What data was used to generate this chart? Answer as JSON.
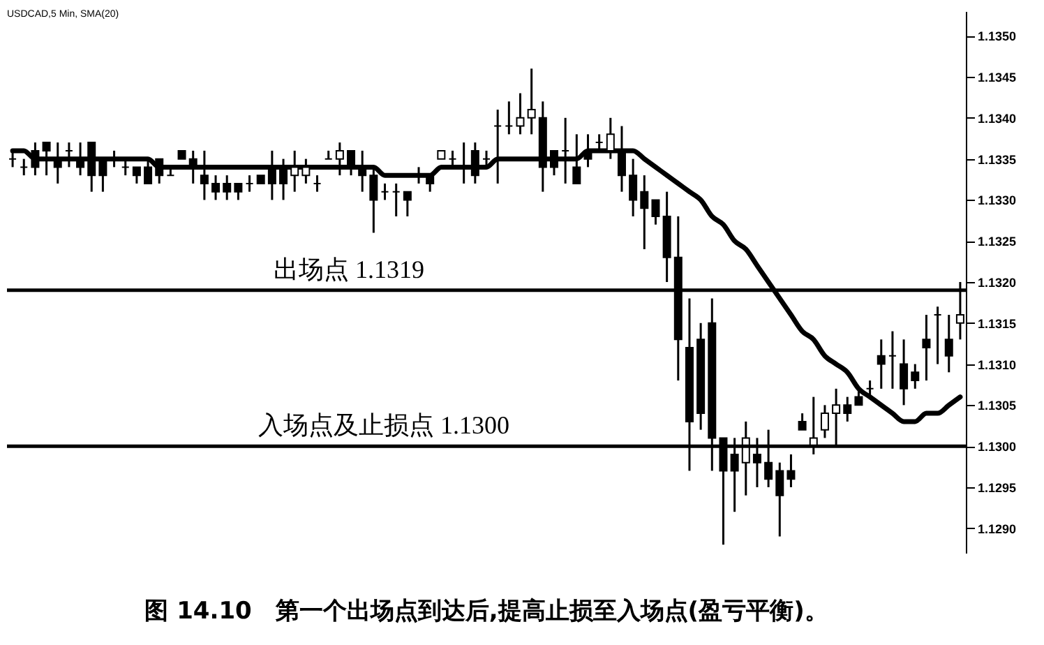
{
  "chart_data": {
    "type": "candlestick",
    "title": "图 14.10　第一个出场点到达后,提高止损至入场点(盈亏平衡)。",
    "annotations": [
      "USDCAD,5 Min, SMA(20)"
    ],
    "categories": [
      null,
      null,
      null,
      null,
      null,
      null,
      null,
      null,
      null,
      null,
      null,
      null,
      null,
      null,
      null,
      null,
      null,
      null,
      null,
      null,
      null,
      null,
      null,
      null,
      null,
      null,
      null,
      null,
      null,
      null,
      null,
      null,
      null,
      null,
      null,
      null,
      null,
      null,
      null,
      null,
      null,
      null,
      null,
      null,
      null,
      null,
      null,
      null,
      null,
      null,
      null,
      null,
      null,
      null,
      null,
      null,
      null,
      null,
      null,
      null,
      null,
      null,
      null,
      null,
      null,
      null,
      null,
      null,
      null,
      null,
      null,
      null,
      null,
      null,
      null,
      null,
      null,
      null,
      null,
      null,
      null,
      null,
      null,
      null,
      null
    ],
    "series": [
      {
        "color": "#000000",
        "ohlc": [
          [
            1.1335,
            1.1336,
            1.1334,
            1.1335
          ],
          [
            1.1334,
            1.1335,
            1.1333,
            1.1334
          ],
          [
            1.1336,
            1.1337,
            1.1333,
            1.1334
          ],
          [
            1.1337,
            1.1337,
            1.1333,
            1.1336
          ],
          [
            1.1335,
            1.1337,
            1.1332,
            1.1334
          ],
          [
            1.1336,
            1.1337,
            1.1334,
            1.1336
          ],
          [
            1.1335,
            1.1337,
            1.1333,
            1.1334
          ],
          [
            1.1337,
            1.1337,
            1.1331,
            1.1333
          ],
          [
            1.1335,
            1.1335,
            1.1331,
            1.1333
          ],
          [
            1.1335,
            1.1336,
            1.1334,
            1.1335
          ],
          [
            1.1334,
            1.1335,
            1.1333,
            1.1334
          ],
          [
            1.1334,
            1.1334,
            1.1332,
            1.1333
          ],
          [
            1.1334,
            1.1335,
            1.1332,
            1.1332
          ],
          [
            1.1335,
            1.1335,
            1.1332,
            1.1333
          ],
          [
            1.1333,
            1.1334,
            1.1333,
            1.1333
          ],
          [
            1.1336,
            1.1336,
            1.1335,
            1.1335
          ],
          [
            1.1335,
            1.1336,
            1.1332,
            1.1334
          ],
          [
            1.1333,
            1.1336,
            1.133,
            1.1332
          ],
          [
            1.1332,
            1.1333,
            1.133,
            1.1331
          ],
          [
            1.1332,
            1.1333,
            1.133,
            1.1331
          ],
          [
            1.1332,
            1.1332,
            1.133,
            1.1331
          ],
          [
            1.1332,
            1.1333,
            1.1331,
            1.1332
          ],
          [
            1.1333,
            1.1333,
            1.1332,
            1.1332
          ],
          [
            1.1334,
            1.1336,
            1.133,
            1.1332
          ],
          [
            1.1334,
            1.1335,
            1.133,
            1.1332
          ],
          [
            1.1333,
            1.1336,
            1.1331,
            1.1334
          ],
          [
            1.1333,
            1.1335,
            1.1332,
            1.1334
          ],
          [
            1.1332,
            1.1333,
            1.1331,
            1.1332
          ],
          [
            1.1335,
            1.1336,
            1.1335,
            1.1335
          ],
          [
            1.1335,
            1.1337,
            1.1333,
            1.1336
          ],
          [
            1.1336,
            1.1336,
            1.1333,
            1.1334
          ],
          [
            1.1334,
            1.1336,
            1.1331,
            1.1333
          ],
          [
            1.1333,
            1.1334,
            1.1326,
            1.133
          ],
          [
            1.1331,
            1.1332,
            1.133,
            1.1331
          ],
          [
            1.1331,
            1.1332,
            1.1328,
            1.1331
          ],
          [
            1.1331,
            1.1331,
            1.1328,
            1.133
          ],
          [
            1.1333,
            1.1334,
            1.1332,
            1.1333
          ],
          [
            1.1333,
            1.1333,
            1.1331,
            1.1332
          ],
          [
            1.1335,
            1.1336,
            1.1335,
            1.1336
          ],
          [
            1.1335,
            1.1336,
            1.1334,
            1.1335
          ],
          [
            1.1334,
            1.1337,
            1.1332,
            1.1334
          ],
          [
            1.1336,
            1.1337,
            1.1332,
            1.1333
          ],
          [
            1.1335,
            1.1336,
            1.1334,
            1.1335
          ],
          [
            1.1339,
            1.1341,
            1.1332,
            1.1339
          ],
          [
            1.1339,
            1.1342,
            1.1338,
            1.1339
          ],
          [
            1.1339,
            1.1343,
            1.1338,
            1.134
          ],
          [
            1.134,
            1.1346,
            1.1338,
            1.1341
          ],
          [
            1.134,
            1.1342,
            1.1331,
            1.1334
          ],
          [
            1.1336,
            1.1336,
            1.1333,
            1.1334
          ],
          [
            1.1336,
            1.134,
            1.1332,
            1.1336
          ],
          [
            1.1334,
            1.1338,
            1.1332,
            1.1332
          ],
          [
            1.1336,
            1.1338,
            1.1334,
            1.1335
          ],
          [
            1.1337,
            1.1338,
            1.1336,
            1.1337
          ],
          [
            1.1336,
            1.134,
            1.1335,
            1.1338
          ],
          [
            1.1336,
            1.1339,
            1.1331,
            1.1333
          ],
          [
            1.1333,
            1.1335,
            1.1328,
            1.133
          ],
          [
            1.1331,
            1.1333,
            1.1324,
            1.1329
          ],
          [
            1.133,
            1.133,
            1.1327,
            1.1328
          ],
          [
            1.1328,
            1.1331,
            1.132,
            1.1323
          ],
          [
            1.1323,
            1.1328,
            1.1308,
            1.1313
          ],
          [
            1.1312,
            1.1318,
            1.1297,
            1.1303
          ],
          [
            1.1313,
            1.1315,
            1.1302,
            1.1304
          ],
          [
            1.1315,
            1.1318,
            1.1297,
            1.1301
          ],
          [
            1.1301,
            1.1301,
            1.1288,
            1.1297
          ],
          [
            1.1299,
            1.1301,
            1.1292,
            1.1297
          ],
          [
            1.1298,
            1.1303,
            1.1294,
            1.1301
          ],
          [
            1.1299,
            1.1301,
            1.1295,
            1.1298
          ],
          [
            1.1298,
            1.1302,
            1.1295,
            1.1296
          ],
          [
            1.1297,
            1.1298,
            1.1289,
            1.1294
          ],
          [
            1.1297,
            1.1299,
            1.1295,
            1.1296
          ],
          [
            1.1303,
            1.1304,
            1.1302,
            1.1302
          ],
          [
            1.13,
            1.1306,
            1.1299,
            1.1301
          ],
          [
            1.1302,
            1.1305,
            1.1301,
            1.1304
          ],
          [
            1.1304,
            1.1307,
            1.13,
            1.1305
          ],
          [
            1.1305,
            1.1306,
            1.1303,
            1.1304
          ],
          [
            1.1306,
            1.1307,
            1.1305,
            1.1305
          ],
          [
            1.1307,
            1.1308,
            1.1306,
            1.1307
          ],
          [
            1.1311,
            1.1313,
            1.1307,
            1.131
          ],
          [
            1.1311,
            1.1314,
            1.1307,
            1.1311
          ],
          [
            1.131,
            1.1313,
            1.1305,
            1.1307
          ],
          [
            1.1309,
            1.131,
            1.1307,
            1.1308
          ],
          [
            1.1313,
            1.1316,
            1.1308,
            1.1312
          ],
          [
            1.1316,
            1.1317,
            1.131,
            1.1316
          ],
          [
            1.1313,
            1.1316,
            1.1309,
            1.1311
          ],
          [
            1.1315,
            1.132,
            1.1313,
            1.1316
          ]
        ]
      },
      {
        "type": "line",
        "color": "#000000",
        "values": [
          1.1336,
          1.1336,
          1.1335,
          1.1335,
          1.1335,
          1.1335,
          1.1335,
          1.1335,
          1.1335,
          1.1335,
          1.1335,
          1.1335,
          1.1335,
          1.1334,
          1.1334,
          1.1334,
          1.1334,
          1.1334,
          1.1334,
          1.1334,
          1.1334,
          1.1334,
          1.1334,
          1.1334,
          1.1334,
          1.1334,
          1.1334,
          1.1334,
          1.1334,
          1.1334,
          1.1334,
          1.1334,
          1.1334,
          1.1333,
          1.1333,
          1.1333,
          1.1333,
          1.1333,
          1.1334,
          1.1334,
          1.1334,
          1.1334,
          1.1334,
          1.1335,
          1.1335,
          1.1335,
          1.1335,
          1.1335,
          1.1335,
          1.1335,
          1.1335,
          1.1336,
          1.1336,
          1.1336,
          1.1336,
          1.1336,
          1.1335,
          1.1334,
          1.1333,
          1.1332,
          1.1331,
          1.133,
          1.1328,
          1.1327,
          1.1325,
          1.1324,
          1.1322,
          1.132,
          1.1318,
          1.1316,
          1.1314,
          1.1313,
          1.1311,
          1.131,
          1.1309,
          1.1307,
          1.1306,
          1.1305,
          1.1304,
          1.1303,
          1.1303,
          1.1304,
          1.1304,
          1.1305,
          1.1306
        ]
      }
    ],
    "ylim": [
      1.1287,
      1.1353
    ],
    "yticks": [
      {
        "value": 1.129,
        "label": "1.1290"
      },
      {
        "value": 1.1295,
        "label": "1.1295"
      },
      {
        "value": 1.13,
        "label": "1.1300"
      },
      {
        "value": 1.1305,
        "label": "1.1305"
      },
      {
        "value": 1.131,
        "label": "1.1310"
      },
      {
        "value": 1.1315,
        "label": "1.1315"
      },
      {
        "value": 1.132,
        "label": "1.1320"
      },
      {
        "value": 1.1325,
        "label": "1.1325"
      },
      {
        "value": 1.133,
        "label": "1.1330"
      },
      {
        "value": 1.1335,
        "label": "1.1335"
      },
      {
        "value": 1.134,
        "label": "1.1340"
      },
      {
        "value": 1.1345,
        "label": "1.1345"
      },
      {
        "value": 1.135,
        "label": "1.1350"
      }
    ],
    "tick_labels": "y",
    "ref_lines": [
      {
        "axis": "y",
        "value": 1.1319,
        "label": "出场点 1.1319",
        "color": "#000000"
      },
      {
        "axis": "y",
        "value": 1.13,
        "label": "入场点及止损点 1.1300",
        "color": "#000000"
      }
    ]
  }
}
